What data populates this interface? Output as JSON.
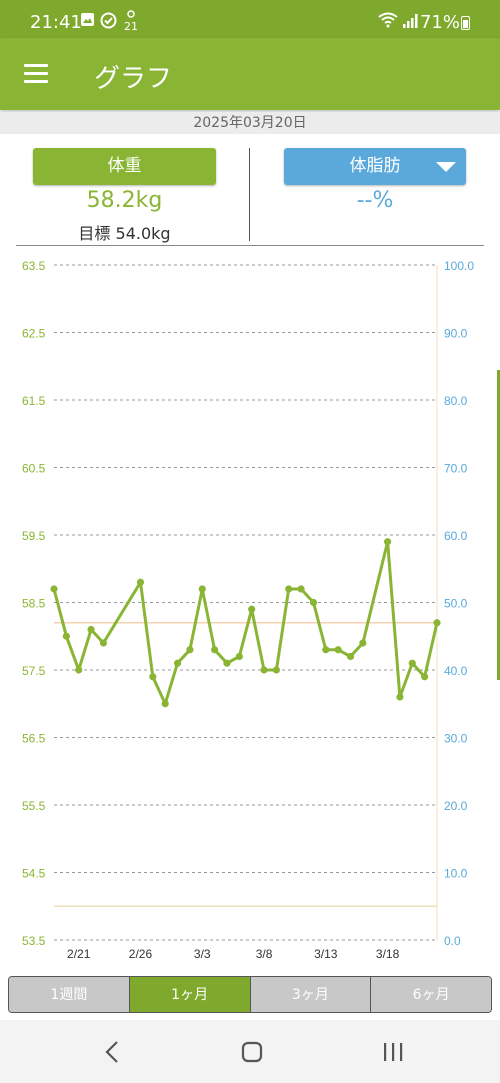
{
  "status_bar": {
    "time": "21:41",
    "notification_icons": [
      "image-icon",
      "clock-check-icon",
      "calendar-21-icon"
    ],
    "calendar_day": "21",
    "signal_icons": [
      "wifi-icon",
      "cell-signal-icon"
    ],
    "battery_percent": "71%"
  },
  "app_bar": {
    "title": "グラフ",
    "menu_icon": "hamburger-menu-icon"
  },
  "date": "2025年03月20日",
  "summary": {
    "weight_button_label": "体重",
    "weight_value": "58.2kg",
    "target_label": "目標 54.0kg",
    "fat_button_label": "体脂肪",
    "fat_value": "--%"
  },
  "colors": {
    "weight": "#8ab534",
    "fat": "#5aa9da",
    "current_line": "#f5c9a0",
    "target_line": "#f0e0b8"
  },
  "chart_data": {
    "type": "line",
    "x_tick_labels": [
      "2/21",
      "2/26",
      "3/3",
      "3/8",
      "3/13",
      "3/18"
    ],
    "y_left": {
      "ticks": [
        "53.5",
        "54.5",
        "55.5",
        "56.5",
        "57.5",
        "58.5",
        "59.5",
        "60.5",
        "61.5",
        "62.5",
        "63.5"
      ],
      "range": [
        53.5,
        63.5
      ]
    },
    "y_right": {
      "ticks": [
        "0.0",
        "10.0",
        "20.0",
        "30.0",
        "40.0",
        "50.0",
        "60.0",
        "70.0",
        "80.0",
        "90.0",
        "100.0"
      ],
      "range": [
        0,
        100
      ]
    },
    "grid": true,
    "reference_lines": [
      58.2,
      54.0
    ],
    "series": [
      {
        "points": [
          [
            "2/19",
            58.7
          ],
          [
            "2/20",
            58.0
          ],
          [
            "2/21",
            57.5
          ],
          [
            "2/22",
            58.1
          ],
          [
            "2/23",
            57.9
          ],
          [
            "2/26",
            58.8
          ],
          [
            "2/27",
            57.4
          ],
          [
            "2/28",
            57.0
          ],
          [
            "3/1",
            57.6
          ],
          [
            "3/2",
            57.8
          ],
          [
            "3/3",
            58.7
          ],
          [
            "3/4",
            57.8
          ],
          [
            "3/5",
            57.6
          ],
          [
            "3/6",
            57.7
          ],
          [
            "3/7",
            58.4
          ],
          [
            "3/8",
            57.5
          ],
          [
            "3/9",
            57.5
          ],
          [
            "3/10",
            58.7
          ],
          [
            "3/11",
            58.7
          ],
          [
            "3/12",
            58.5
          ],
          [
            "3/13",
            57.8
          ],
          [
            "3/14",
            57.8
          ],
          [
            "3/15",
            57.7
          ],
          [
            "3/16",
            57.9
          ],
          [
            "3/18",
            59.4
          ],
          [
            "3/19",
            57.1
          ],
          [
            "3/20",
            57.6
          ],
          [
            "3/21",
            57.4
          ],
          [
            "3/22",
            58.2
          ]
        ]
      }
    ]
  },
  "period_tabs": [
    {
      "label": "1週間",
      "active": false
    },
    {
      "label": "1ヶ月",
      "active": true
    },
    {
      "label": "3ヶ月",
      "active": false
    },
    {
      "label": "6ヶ月",
      "active": false
    }
  ],
  "nav": [
    "back-icon",
    "home-icon",
    "recents-icon"
  ]
}
